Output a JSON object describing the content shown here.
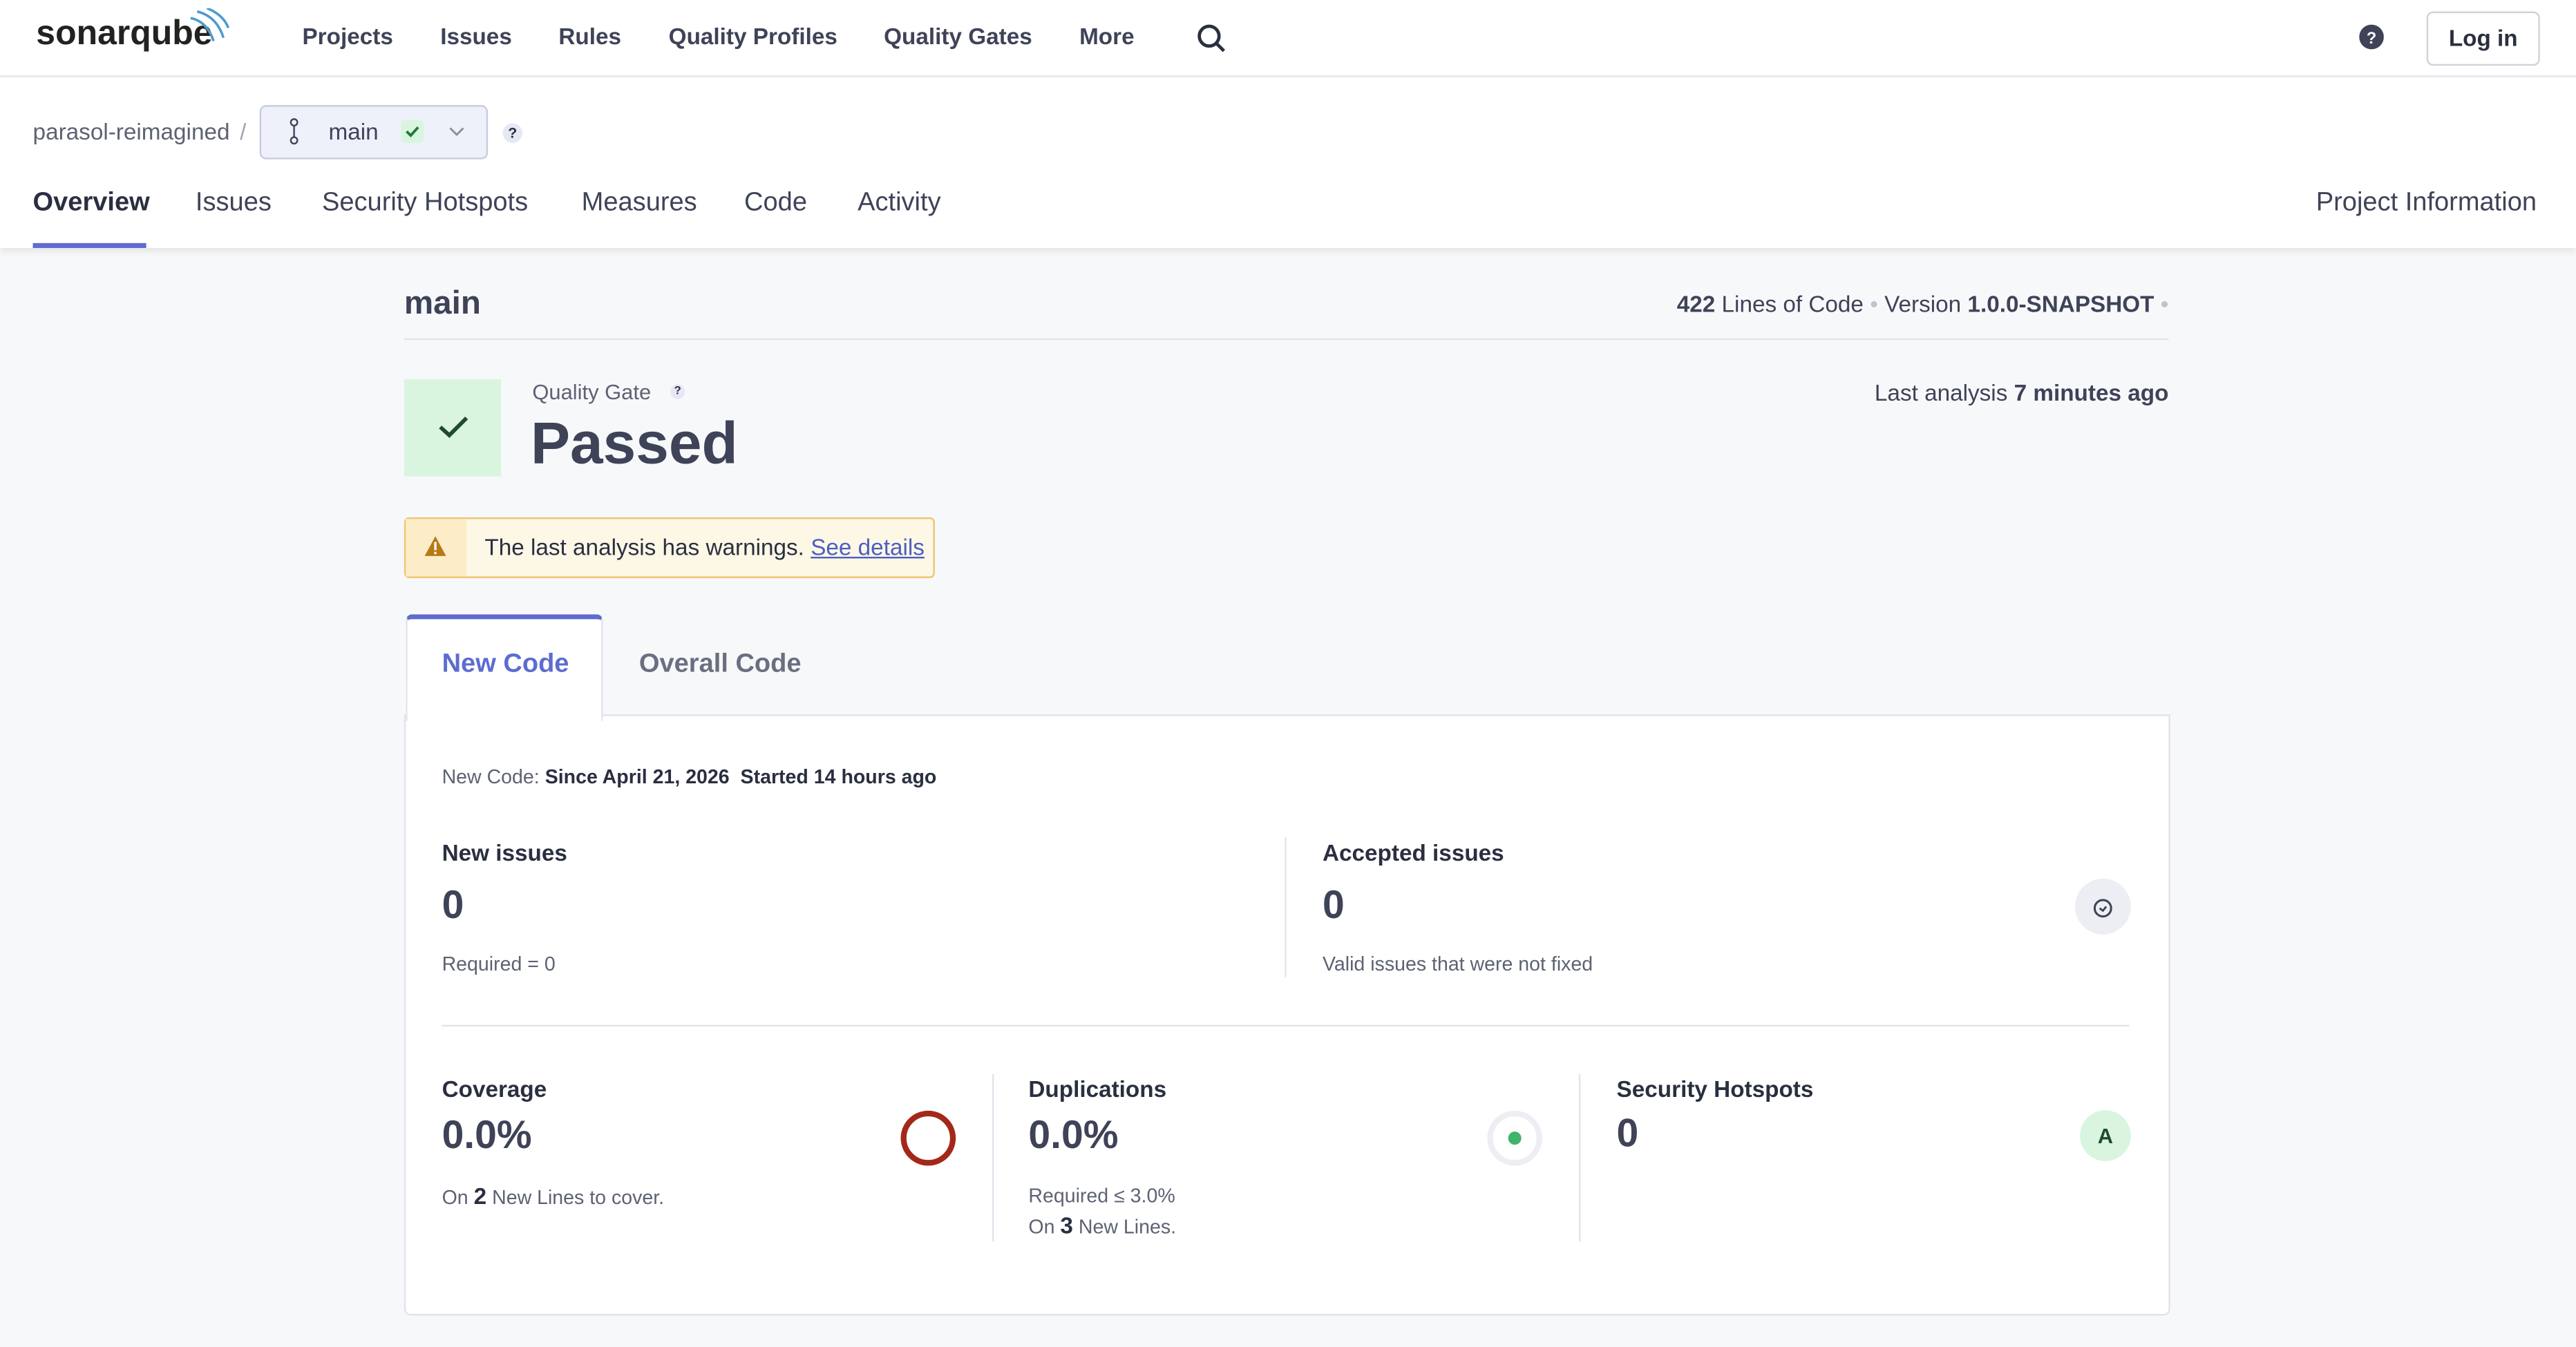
{
  "nav": {
    "logo": "sonarqube",
    "items": [
      "Projects",
      "Issues",
      "Rules",
      "Quality Profiles",
      "Quality Gates",
      "More"
    ],
    "login": "Log in"
  },
  "breadcrumb": {
    "project": "parasol-reimagined",
    "separator": "/",
    "branch": "main",
    "help": "?"
  },
  "tabs": {
    "items": [
      "Overview",
      "Issues",
      "Security Hotspots",
      "Measures",
      "Code",
      "Activity"
    ],
    "project_info": "Project Information"
  },
  "header": {
    "branch": "main",
    "loc_value": "422",
    "loc_label": "Lines of Code",
    "version_label": "Version",
    "version": "1.0.0-SNAPSHOT"
  },
  "quality_gate": {
    "label": "Quality Gate",
    "help": "?",
    "status": "Passed",
    "last_analysis_label": "Last analysis",
    "last_analysis": "7 minutes ago"
  },
  "warning": {
    "text": "The last analysis has warnings.",
    "link": "See details"
  },
  "code_tabs": [
    "New Code",
    "Overall Code"
  ],
  "new_code": {
    "label": "New Code:",
    "since": "Since April 21, 2026",
    "started": "Started 14 hours ago"
  },
  "metrics": {
    "new_issues": {
      "title": "New issues",
      "value": "0",
      "note": "Required = 0"
    },
    "accepted_issues": {
      "title": "Accepted issues",
      "value": "0",
      "note": "Valid issues that were not fixed"
    },
    "coverage": {
      "title": "Coverage",
      "value": "0.0%",
      "note_prefix": "On",
      "note_number": "2",
      "note_suffix": "New Lines to cover."
    },
    "duplications": {
      "title": "Duplications",
      "value": "0.0%",
      "required": "Required ≤ 3.0%",
      "note_prefix": "On",
      "note_number": "3",
      "note_suffix": "New Lines."
    },
    "security_hotspots": {
      "title": "Security Hotspots",
      "value": "0",
      "rating": "A"
    }
  }
}
